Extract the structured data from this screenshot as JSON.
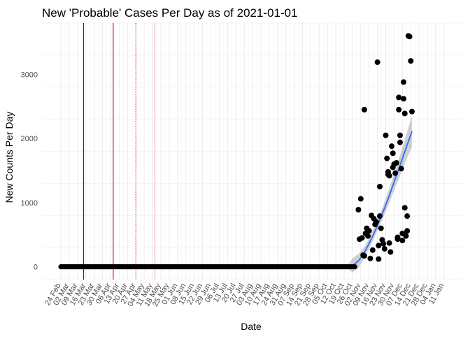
{
  "chart_data": {
    "type": "scatter",
    "title": "New 'Probable' Cases Per Day as of 2021-01-01",
    "xlabel": "Date",
    "ylabel": "New Counts Per Day",
    "x_domain": [
      "2020-02-24",
      "2021-01-11"
    ],
    "ylim": [
      -200,
      3800
    ],
    "yticks": [
      0,
      1000,
      2000,
      3000
    ],
    "xtick_labels": [
      "24 Feb",
      "02 Mar",
      "09 Mar",
      "16 Mar",
      "23 Mar",
      "30 Mar",
      "06 Apr",
      "13 Apr",
      "20 Apr",
      "27 Apr",
      "04 May",
      "11 May",
      "18 May",
      "25 May",
      "01 Jun",
      "08 Jun",
      "15 Jun",
      "22 Jun",
      "29 Jun",
      "06 Jul",
      "13 Jul",
      "20 Jul",
      "27 Jul",
      "03 Aug",
      "10 Aug",
      "17 Aug",
      "24 Aug",
      "31 Aug",
      "07 Sep",
      "14 Sep",
      "21 Sep",
      "28 Sep",
      "05 Oct",
      "12 Oct",
      "19 Oct",
      "26 Oct",
      "02 Nov",
      "09 Nov",
      "16 Nov",
      "23 Nov",
      "30 Nov",
      "07 Dec",
      "14 Dec",
      "21 Dec",
      "28 Dec",
      "04 Jan",
      "11 Jan"
    ],
    "grid": true,
    "zero_series": {
      "start_day": 0,
      "end_day": 247,
      "value": 0
    },
    "points": [
      {
        "day": 250,
        "value": 890
      },
      {
        "day": 251,
        "value": 430
      },
      {
        "day": 252,
        "value": 1060
      },
      {
        "day": 253,
        "value": 450
      },
      {
        "day": 254,
        "value": 180
      },
      {
        "day": 255,
        "value": 2450
      },
      {
        "day": 255,
        "value": 170
      },
      {
        "day": 256,
        "value": 520
      },
      {
        "day": 257,
        "value": 600
      },
      {
        "day": 258,
        "value": 480
      },
      {
        "day": 259,
        "value": 560
      },
      {
        "day": 260,
        "value": 130
      },
      {
        "day": 261,
        "value": 800
      },
      {
        "day": 262,
        "value": 260
      },
      {
        "day": 263,
        "value": 750
      },
      {
        "day": 264,
        "value": 660
      },
      {
        "day": 265,
        "value": 700
      },
      {
        "day": 266,
        "value": 3190
      },
      {
        "day": 267,
        "value": 330
      },
      {
        "day": 267,
        "value": 120
      },
      {
        "day": 268,
        "value": 1250
      },
      {
        "day": 268,
        "value": 790
      },
      {
        "day": 269,
        "value": 600
      },
      {
        "day": 270,
        "value": 420
      },
      {
        "day": 271,
        "value": 360
      },
      {
        "day": 272,
        "value": 280
      },
      {
        "day": 273,
        "value": 2050
      },
      {
        "day": 274,
        "value": 1690
      },
      {
        "day": 275,
        "value": 1480
      },
      {
        "day": 275,
        "value": 1440
      },
      {
        "day": 276,
        "value": 370
      },
      {
        "day": 276,
        "value": 1420
      },
      {
        "day": 277,
        "value": 230
      },
      {
        "day": 278,
        "value": 1880
      },
      {
        "day": 279,
        "value": 1770
      },
      {
        "day": 279,
        "value": 1550
      },
      {
        "day": 280,
        "value": 1600
      },
      {
        "day": 281,
        "value": 1460
      },
      {
        "day": 282,
        "value": 1620
      },
      {
        "day": 283,
        "value": 430
      },
      {
        "day": 284,
        "value": 2640
      },
      {
        "day": 284,
        "value": 2450
      },
      {
        "day": 285,
        "value": 1940
      },
      {
        "day": 285,
        "value": 2050
      },
      {
        "day": 286,
        "value": 1530
      },
      {
        "day": 287,
        "value": 520
      },
      {
        "day": 288,
        "value": 2880
      },
      {
        "day": 288,
        "value": 2620
      },
      {
        "day": 289,
        "value": 2390
      },
      {
        "day": 289,
        "value": 920
      },
      {
        "day": 290,
        "value": 480
      },
      {
        "day": 291,
        "value": 790
      },
      {
        "day": 291,
        "value": 560
      },
      {
        "day": 292,
        "value": 3600
      },
      {
        "day": 293,
        "value": 3590
      },
      {
        "day": 294,
        "value": 3210
      },
      {
        "day": 295,
        "value": 2420
      },
      {
        "day": 283,
        "value": 460
      },
      {
        "day": 287,
        "value": 410
      }
    ],
    "trend": {
      "name": "smoothed trend",
      "color": "#3366ff",
      "values": [
        {
          "day": 0,
          "value": 0
        },
        {
          "day": 240,
          "value": 0
        },
        {
          "day": 245,
          "value": 20
        },
        {
          "day": 250,
          "value": 90
        },
        {
          "day": 255,
          "value": 220
        },
        {
          "day": 260,
          "value": 400
        },
        {
          "day": 265,
          "value": 600
        },
        {
          "day": 270,
          "value": 820
        },
        {
          "day": 275,
          "value": 1060
        },
        {
          "day": 280,
          "value": 1320
        },
        {
          "day": 285,
          "value": 1580
        },
        {
          "day": 290,
          "value": 1850
        },
        {
          "day": 295,
          "value": 2110
        }
      ],
      "band": [
        {
          "day": 240,
          "lo": 0,
          "hi": 0
        },
        {
          "day": 245,
          "lo": -90,
          "hi": 130
        },
        {
          "day": 250,
          "lo": -20,
          "hi": 200
        },
        {
          "day": 255,
          "lo": 130,
          "hi": 310
        },
        {
          "day": 260,
          "lo": 320,
          "hi": 480
        },
        {
          "day": 265,
          "lo": 520,
          "hi": 680
        },
        {
          "day": 270,
          "lo": 730,
          "hi": 910
        },
        {
          "day": 275,
          "lo": 950,
          "hi": 1170
        },
        {
          "day": 280,
          "lo": 1190,
          "hi": 1450
        },
        {
          "day": 285,
          "lo": 1420,
          "hi": 1740
        },
        {
          "day": 290,
          "lo": 1650,
          "hi": 2050
        },
        {
          "day": 295,
          "lo": 1870,
          "hi": 2350
        }
      ]
    },
    "reference_lines": [
      {
        "name": "blue-marker",
        "day": 19,
        "color": "#0000ff",
        "style": "solid"
      },
      {
        "name": "red-marker",
        "day": 44,
        "color": "#cc0000",
        "style": "solid"
      },
      {
        "name": "red-dotted-marker",
        "day": 63,
        "color": "#cc0000",
        "style": "dotted"
      },
      {
        "name": "pink-marker",
        "day": 79,
        "color": "#f4a6a6",
        "style": "solid"
      }
    ]
  }
}
